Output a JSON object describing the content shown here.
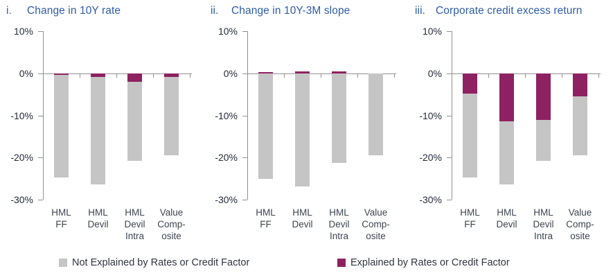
{
  "colors": {
    "title_blue": "#2D5CA8",
    "axis_gray": "#909090",
    "bar_gray": "#C5C5C5",
    "bar_magenta": "#8E2161"
  },
  "legend": {
    "items": [
      {
        "label": "Not Explained by Rates or Credit Factor",
        "color": "#C5C5C5"
      },
      {
        "label": "Explained by Rates or Credit Factor",
        "color": "#8E2161"
      }
    ]
  },
  "chart_data": [
    {
      "type": "bar",
      "numeral": "i.",
      "title": "Change in 10Y rate",
      "categories": [
        [
          "HML",
          "FF"
        ],
        [
          "HML",
          "Devil"
        ],
        [
          "HML",
          "Devil",
          "Intra"
        ],
        [
          "Value",
          "Comp-",
          "osite"
        ]
      ],
      "series": [
        {
          "name": "Explained by Rates or Credit Factor",
          "color": "#8E2161",
          "values": [
            -0.3,
            -0.8,
            -2.0,
            -0.8
          ]
        },
        {
          "name": "Not Explained by Rates or Credit Factor",
          "color": "#C5C5C5",
          "values": [
            -24.4,
            -25.6,
            -18.8,
            -18.6
          ]
        }
      ],
      "ylim": [
        -30,
        10
      ],
      "yticks": [
        {
          "v": 10,
          "label": "10%"
        },
        {
          "v": 0,
          "label": "0%"
        },
        {
          "v": -10,
          "label": "-10%"
        },
        {
          "v": -20,
          "label": "-20%"
        },
        {
          "v": -30,
          "label": "-30%"
        }
      ],
      "legend_position": "bottom"
    },
    {
      "type": "bar",
      "numeral": "ii.",
      "title": "Change in 10Y-3M slope",
      "categories": [
        [
          "HML",
          "FF"
        ],
        [
          "HML",
          "Devil"
        ],
        [
          "HML",
          "Devil",
          "Intra"
        ],
        [
          "Value",
          "Comp-",
          "osite"
        ]
      ],
      "series": [
        {
          "name": "Explained by Rates or Credit Factor",
          "color": "#8E2161",
          "values": [
            0.3,
            0.4,
            0.4,
            0.0
          ]
        },
        {
          "name": "Not Explained by Rates or Credit Factor",
          "color": "#C5C5C5",
          "values": [
            -25.0,
            -26.8,
            -21.2,
            -19.4
          ]
        }
      ],
      "ylim": [
        -30,
        10
      ],
      "yticks": [
        {
          "v": 10,
          "label": "10%"
        },
        {
          "v": 0,
          "label": "0%"
        },
        {
          "v": -10,
          "label": "-10%"
        },
        {
          "v": -20,
          "label": "-20%"
        },
        {
          "v": -30,
          "label": "-30%"
        }
      ],
      "legend_position": "bottom"
    },
    {
      "type": "bar",
      "numeral": "iii.",
      "title": "Corporate credit excess return",
      "categories": [
        [
          "HML",
          "FF"
        ],
        [
          "HML",
          "Devil"
        ],
        [
          "HML",
          "Devil",
          "Intra"
        ],
        [
          "Value",
          "Comp-",
          "osite"
        ]
      ],
      "series": [
        {
          "name": "Explained by Rates or Credit Factor",
          "color": "#8E2161",
          "values": [
            -4.8,
            -11.4,
            -11.1,
            -5.4
          ]
        },
        {
          "name": "Not Explained by Rates or Credit Factor",
          "color": "#C5C5C5",
          "values": [
            -19.9,
            -15.0,
            -9.7,
            -14.0
          ]
        }
      ],
      "ylim": [
        -30,
        10
      ],
      "yticks": [
        {
          "v": 10,
          "label": "10%"
        },
        {
          "v": 0,
          "label": "0%"
        },
        {
          "v": -10,
          "label": "-10%"
        },
        {
          "v": -20,
          "label": "-20%"
        },
        {
          "v": -30,
          "label": "-30%"
        }
      ],
      "legend_position": "bottom"
    }
  ]
}
